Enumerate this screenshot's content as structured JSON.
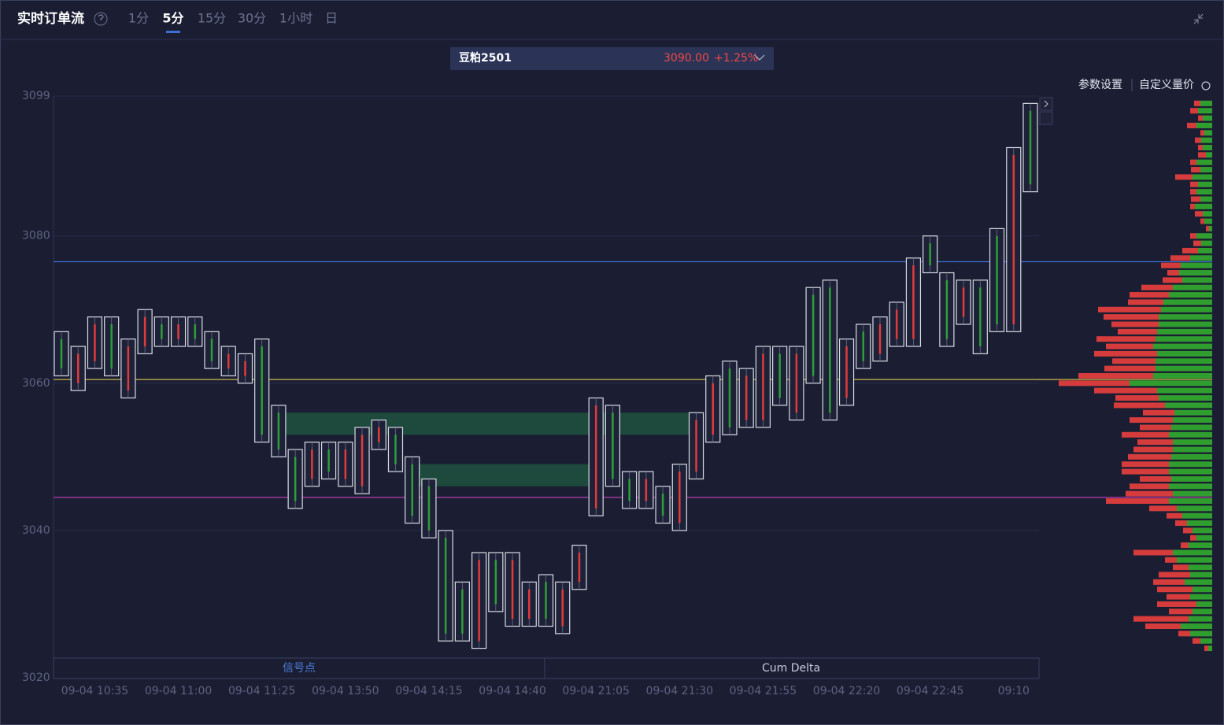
{
  "header": {
    "title": "实时订单流",
    "tabs": [
      "1分",
      "5分",
      "15分",
      "30分",
      "1小时",
      "日"
    ],
    "active_tab": 1
  },
  "instrument": {
    "name": "豆粕2501",
    "price": "3090.00",
    "change": "+1.25%"
  },
  "toolbar": {
    "settings": "参数设置",
    "custom": "自定义量价"
  },
  "bottom_tabs": [
    "信号点",
    "Cum Delta"
  ],
  "chart_data": {
    "type": "footprint",
    "ylim": [
      3020,
      3099
    ],
    "yticks": [
      3099,
      3080,
      3060,
      3040,
      3020
    ],
    "up_color": "#e03b3b",
    "down_color": "#2f9e3a",
    "categories": [
      null,
      null,
      "09-04 10:35",
      null,
      null,
      null,
      null,
      "09-04 11:00",
      null,
      null,
      null,
      null,
      "09-04 11:25",
      null,
      null,
      null,
      null,
      "09-04 13:50",
      null,
      null,
      null,
      null,
      "09-04 14:15",
      null,
      null,
      null,
      null,
      "09-04 14:40",
      null,
      null,
      null,
      null,
      "09-04 21:05",
      null,
      null,
      null,
      null,
      "09-04 21:30",
      null,
      null,
      null,
      null,
      "09-04 21:55",
      null,
      null,
      null,
      null,
      "09-04 22:20",
      null,
      null,
      null,
      null,
      "09-04 22:45",
      null,
      null,
      null,
      null,
      "09:10",
      null
    ],
    "high": [
      3067,
      3065,
      3069,
      3069,
      3066,
      3070,
      3069,
      3069,
      3069,
      3067,
      3065,
      3064,
      3066,
      3057,
      3051,
      3052,
      3052,
      3052,
      3054,
      3055,
      3054,
      3050,
      3047,
      3040,
      3033,
      3037,
      3037,
      3037,
      3033,
      3034,
      3033,
      3038,
      3058,
      3057,
      3048,
      3048,
      3046,
      3049,
      3056,
      3061,
      3063,
      3062,
      3065,
      3065,
      3065,
      3073,
      3074,
      3066,
      3068,
      3069,
      3071,
      3077,
      3080,
      3075,
      3074,
      3074,
      3081,
      3092,
      3098
    ],
    "low": [
      3061,
      3059,
      3062,
      3061,
      3058,
      3064,
      3065,
      3065,
      3065,
      3062,
      3061,
      3060,
      3052,
      3050,
      3043,
      3046,
      3047,
      3046,
      3045,
      3051,
      3048,
      3041,
      3039,
      3025,
      3025,
      3024,
      3029,
      3027,
      3027,
      3027,
      3026,
      3032,
      3042,
      3046,
      3043,
      3043,
      3041,
      3040,
      3047,
      3052,
      3053,
      3054,
      3054,
      3057,
      3055,
      3060,
      3055,
      3057,
      3062,
      3063,
      3065,
      3065,
      3075,
      3065,
      3068,
      3064,
      3067,
      3067,
      3086
    ],
    "open": [
      3066,
      3060,
      3063,
      3068,
      3059,
      3065,
      3068,
      3066,
      3068,
      3066,
      3062,
      3061,
      3065,
      3056,
      3050,
      3047,
      3051,
      3047,
      3046,
      3052,
      3053,
      3049,
      3046,
      3039,
      3032,
      3025,
      3036,
      3028,
      3028,
      3033,
      3027,
      3033,
      3043,
      3056,
      3047,
      3044,
      3045,
      3041,
      3048,
      3053,
      3062,
      3055,
      3055,
      3064,
      3056,
      3072,
      3073,
      3058,
      3067,
      3064,
      3066,
      3066,
      3079,
      3074,
      3069,
      3073,
      3080,
      3068,
      3097
    ],
    "close": [
      3062,
      3064,
      3068,
      3062,
      3065,
      3069,
      3066,
      3068,
      3066,
      3063,
      3064,
      3063,
      3053,
      3051,
      3044,
      3051,
      3048,
      3051,
      3053,
      3054,
      3049,
      3042,
      3040,
      3026,
      3026,
      3036,
      3030,
      3036,
      3032,
      3028,
      3032,
      3037,
      3057,
      3047,
      3044,
      3047,
      3042,
      3048,
      3055,
      3060,
      3054,
      3061,
      3064,
      3058,
      3064,
      3061,
      3056,
      3065,
      3063,
      3068,
      3070,
      3076,
      3076,
      3066,
      3073,
      3065,
      3068,
      3091,
      3087
    ],
    "levels": [
      {
        "value": 3076.5,
        "color": "#3d6fd1"
      },
      {
        "value": 3060.5,
        "color": "#c9b64a"
      },
      {
        "value": 3044.5,
        "color": "#c840c0"
      }
    ],
    "zones": [
      {
        "low": 3053,
        "high": 3056,
        "start": 13,
        "end": 38,
        "color": "#1d4a3c"
      },
      {
        "low": 3046,
        "high": 3049,
        "start": 21,
        "end": 32,
        "color": "#1d4a3c"
      }
    ],
    "profile": {
      "buy_color": "#2f9e2f",
      "sell_color": "#d63c3c",
      "prices": [
        3098,
        3097,
        3096,
        3095,
        3094,
        3093,
        3092,
        3091,
        3090,
        3089,
        3088,
        3087,
        3086,
        3085,
        3084,
        3083,
        3082,
        3081,
        3080,
        3079,
        3078,
        3077,
        3076,
        3075,
        3074,
        3073,
        3072,
        3071,
        3070,
        3069,
        3068,
        3067,
        3066,
        3065,
        3064,
        3063,
        3062,
        3061,
        3060,
        3059,
        3058,
        3057,
        3056,
        3055,
        3054,
        3053,
        3052,
        3051,
        3050,
        3049,
        3048,
        3047,
        3046,
        3045,
        3044,
        3043,
        3042,
        3041,
        3040,
        3039,
        3038,
        3037,
        3036,
        3035,
        3034,
        3033,
        3032,
        3031,
        3030,
        3029,
        3028,
        3027,
        3026,
        3025,
        3024
      ],
      "buy": [
        15,
        18,
        12,
        20,
        10,
        14,
        12,
        8,
        20,
        15,
        25,
        18,
        20,
        15,
        22,
        12,
        10,
        4,
        20,
        14,
        18,
        28,
        40,
        42,
        38,
        50,
        55,
        62,
        65,
        68,
        68,
        70,
        72,
        75,
        70,
        72,
        72,
        75,
        105,
        70,
        68,
        60,
        48,
        50,
        52,
        55,
        50,
        50,
        52,
        55,
        55,
        52,
        55,
        50,
        55,
        45,
        38,
        32,
        25,
        20,
        30,
        50,
        45,
        30,
        28,
        35,
        25,
        28,
        20,
        25,
        30,
        40,
        28,
        15,
        5
      ],
      "sell": [
        8,
        10,
        6,
        12,
        5,
        8,
        6,
        10,
        8,
        12,
        22,
        10,
        8,
        12,
        6,
        10,
        5,
        4,
        8,
        10,
        20,
        25,
        25,
        15,
        25,
        40,
        50,
        45,
        80,
        70,
        60,
        50,
        75,
        60,
        80,
        55,
        65,
        95,
        90,
        80,
        55,
        65,
        40,
        55,
        40,
        60,
        45,
        50,
        55,
        60,
        60,
        40,
        50,
        60,
        80,
        35,
        20,
        15,
        12,
        8,
        10,
        50,
        15,
        20,
        40,
        40,
        45,
        30,
        50,
        30,
        70,
        45,
        15,
        10,
        5
      ]
    }
  }
}
